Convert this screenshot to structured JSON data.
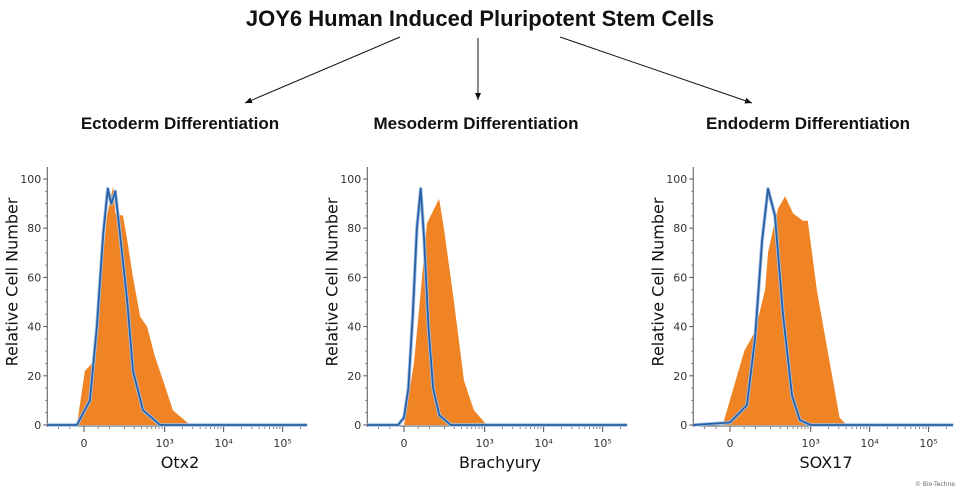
{
  "title": "JOY6 Human Induced Pluripotent Stem Cells",
  "copyright": "© Bio-Techne",
  "colors": {
    "sample": "#f08424",
    "control": "#2b5fa3"
  },
  "chart_data": [
    {
      "type": "area",
      "title": "Ectoderm Differentiation",
      "xlabel": "Otx2",
      "ylabel": "Relative Cell Number",
      "xscale": "biexponential",
      "xlim": [
        -170,
        260000
      ],
      "ylim": [
        0,
        100
      ],
      "yticks": [
        "0",
        "20",
        "40",
        "60",
        "80",
        "100"
      ],
      "xticks": [
        {
          "value": 0,
          "label": "0"
        },
        {
          "value": 1000,
          "label": "10³"
        },
        {
          "value": 10000,
          "label": "10⁴"
        },
        {
          "value": 100000,
          "label": "10⁵"
        }
      ],
      "series": [
        {
          "role": "sample",
          "type": "area",
          "x": [
            -24,
            3,
            27,
            57,
            88,
            120,
            133,
            188,
            225,
            285,
            380,
            500,
            680,
            945,
            1380,
            2700
          ],
          "y": [
            0,
            22,
            25,
            55,
            85,
            97,
            86,
            85,
            75,
            60,
            44,
            40,
            28,
            18,
            6,
            0
          ]
        },
        {
          "role": "control",
          "type": "line",
          "x": [
            -24,
            20,
            45,
            71,
            92,
            110,
            133,
            164,
            225,
            285,
            426,
            835
          ],
          "y": [
            0,
            10,
            40,
            78,
            96,
            90,
            95,
            78,
            50,
            22,
            6,
            0
          ]
        }
      ]
    },
    {
      "type": "area",
      "title": "Mesoderm Differentiation",
      "xlabel": "Brachyury",
      "ylabel": "Relative Cell Number",
      "xscale": "biexponential",
      "xlim": [
        -170,
        260000
      ],
      "ylim": [
        0,
        100
      ],
      "yticks": [
        "0",
        "20",
        "40",
        "60",
        "80",
        "100"
      ],
      "xticks": [
        {
          "value": 0,
          "label": "0"
        },
        {
          "value": 1000,
          "label": "10³"
        },
        {
          "value": 10000,
          "label": "10⁴"
        },
        {
          "value": 100000,
          "label": "10⁵"
        }
      ],
      "series": [
        {
          "role": "sample",
          "type": "area",
          "x": [
            0,
            34,
            61,
            88,
            158,
            195,
            297,
            443,
            655,
            1090
          ],
          "y": [
            0,
            25,
            55,
            82,
            92,
            80,
            50,
            18,
            6,
            0
          ]
        },
        {
          "role": "control",
          "type": "line",
          "x": [
            -20,
            0,
            15,
            30,
            45,
            60,
            75,
            95,
            120,
            160,
            260
          ],
          "y": [
            0,
            3,
            15,
            45,
            80,
            96,
            75,
            40,
            15,
            4,
            0
          ]
        }
      ]
    },
    {
      "type": "area",
      "title": "Endoderm Differentiation",
      "xlabel": "SOX17",
      "ylabel": "Relative Cell Number",
      "xscale": "biexponential",
      "xlim": [
        -170,
        260000
      ],
      "ylim": [
        0,
        100
      ],
      "yticks": [
        "0",
        "20",
        "40",
        "60",
        "80",
        "100"
      ],
      "xticks": [
        {
          "value": 0,
          "label": "0"
        },
        {
          "value": 1000,
          "label": "10³"
        },
        {
          "value": 10000,
          "label": "10⁴"
        },
        {
          "value": 100000,
          "label": "10⁵"
        }
      ],
      "series": [
        {
          "role": "sample",
          "type": "area",
          "x": [
            -25,
            50,
            98,
            158,
            180,
            225,
            274,
            364,
            500,
            740,
            895,
            1270,
            2120,
            3100,
            4100
          ],
          "y": [
            0,
            30,
            38,
            55,
            70,
            80,
            88,
            93,
            86,
            83,
            83,
            55,
            25,
            3,
            0
          ]
        },
        {
          "role": "control",
          "type": "line",
          "x": [
            0,
            61,
            98,
            138,
            180,
            242,
            335,
            480,
            655,
            1000
          ],
          "y": [
            1,
            8,
            35,
            75,
            96,
            85,
            45,
            12,
            2,
            0
          ]
        }
      ]
    }
  ]
}
